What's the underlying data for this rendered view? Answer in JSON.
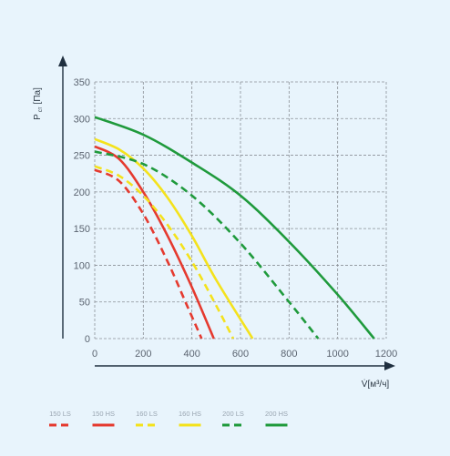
{
  "chart_data": {
    "type": "line",
    "ylabel_main": "P",
    "ylabel_sub": "ст",
    "ylabel_unit": "[Па]",
    "xlabel": "V̇[м³/ч]",
    "xlim": [
      0,
      1200
    ],
    "ylim": [
      0,
      350
    ],
    "x_ticks": [
      "0",
      "200",
      "400",
      "600",
      "800",
      "1000",
      "1200"
    ],
    "y_ticks": [
      "0",
      "50",
      "100",
      "150",
      "200",
      "250",
      "300",
      "350"
    ],
    "grid": true,
    "legend_position": "bottom",
    "series": [
      {
        "name": "150 LS",
        "color": "#e53a2f",
        "dash": true,
        "x": [
          0,
          100,
          200,
          300,
          380,
          440
        ],
        "y": [
          230,
          215,
          170,
          105,
          45,
          0
        ]
      },
      {
        "name": "150 HS",
        "color": "#e53a2f",
        "dash": false,
        "x": [
          0,
          100,
          200,
          300,
          400,
          490
        ],
        "y": [
          262,
          245,
          200,
          140,
          70,
          0
        ]
      },
      {
        "name": "160 LS",
        "color": "#f4e21c",
        "dash": true,
        "x": [
          0,
          100,
          200,
          300,
          400,
          500,
          570
        ],
        "y": [
          235,
          222,
          195,
          155,
          105,
          45,
          0
        ]
      },
      {
        "name": "160 HS",
        "color": "#f4e21c",
        "dash": false,
        "x": [
          0,
          100,
          200,
          300,
          400,
          500,
          650
        ],
        "y": [
          272,
          258,
          232,
          192,
          140,
          80,
          0
        ]
      },
      {
        "name": "200 LS",
        "color": "#1f9a3c",
        "dash": true,
        "x": [
          0,
          200,
          400,
          600,
          800,
          920
        ],
        "y": [
          255,
          238,
          195,
          130,
          50,
          0
        ]
      },
      {
        "name": "200 HS",
        "color": "#1f9a3c",
        "dash": false,
        "x": [
          0,
          200,
          400,
          600,
          800,
          1000,
          1150
        ],
        "y": [
          302,
          278,
          240,
          195,
          132,
          60,
          0
        ]
      }
    ]
  }
}
